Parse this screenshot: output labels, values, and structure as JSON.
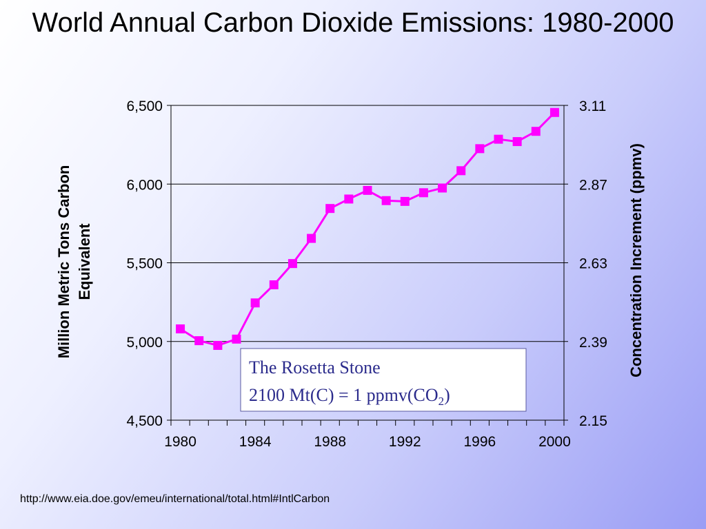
{
  "slide": {
    "title": "World Annual Carbon Dioxide Emissions: 1980-2000",
    "source_url": "http://www.eia.doe.gov/emeu/international/total.html#IntlCarbon"
  },
  "annotation": {
    "line1": "The Rosetta Stone",
    "line2_prefix": "2100 Mt(C) = 1 ppmv(CO",
    "line2_subscript": "2",
    "line2_suffix": ")"
  },
  "colors": {
    "series": "#ff00ff",
    "annotation_text": "#2b2b8c",
    "annotation_border": "#5a5aa0"
  },
  "chart_data": {
    "type": "line",
    "ylabel": "Million Metric Tons Carbon Equivalent",
    "y2label": "Concentration Increment (ppmv)",
    "xlim": [
      1979.5,
      2000.5
    ],
    "ylim": [
      4500,
      6500
    ],
    "y2lim": [
      2.15,
      3.11
    ],
    "xticks": [
      "1980",
      "1984",
      "1988",
      "1992",
      "1996",
      "2000"
    ],
    "yticks": [
      "4,500",
      "5,000",
      "5,500",
      "6,000",
      "6,500"
    ],
    "y2ticks": [
      "2.15",
      "2.39",
      "2.63",
      "2.87",
      "3.11"
    ],
    "grid": "horizontal",
    "series": [
      {
        "x": [
          1980,
          1981,
          1982,
          1983,
          1984,
          1985,
          1986,
          1987,
          1988,
          1989,
          1990,
          1991,
          1992,
          1993,
          1994,
          1995,
          1996,
          1997,
          1998,
          1999,
          2000
        ],
        "values": [
          5080,
          5005,
          4975,
          5015,
          5245,
          5360,
          5495,
          5655,
          5845,
          5905,
          5960,
          5895,
          5890,
          5945,
          5975,
          6085,
          6225,
          6285,
          6270,
          6335,
          6455
        ],
        "marker": "square"
      }
    ]
  }
}
